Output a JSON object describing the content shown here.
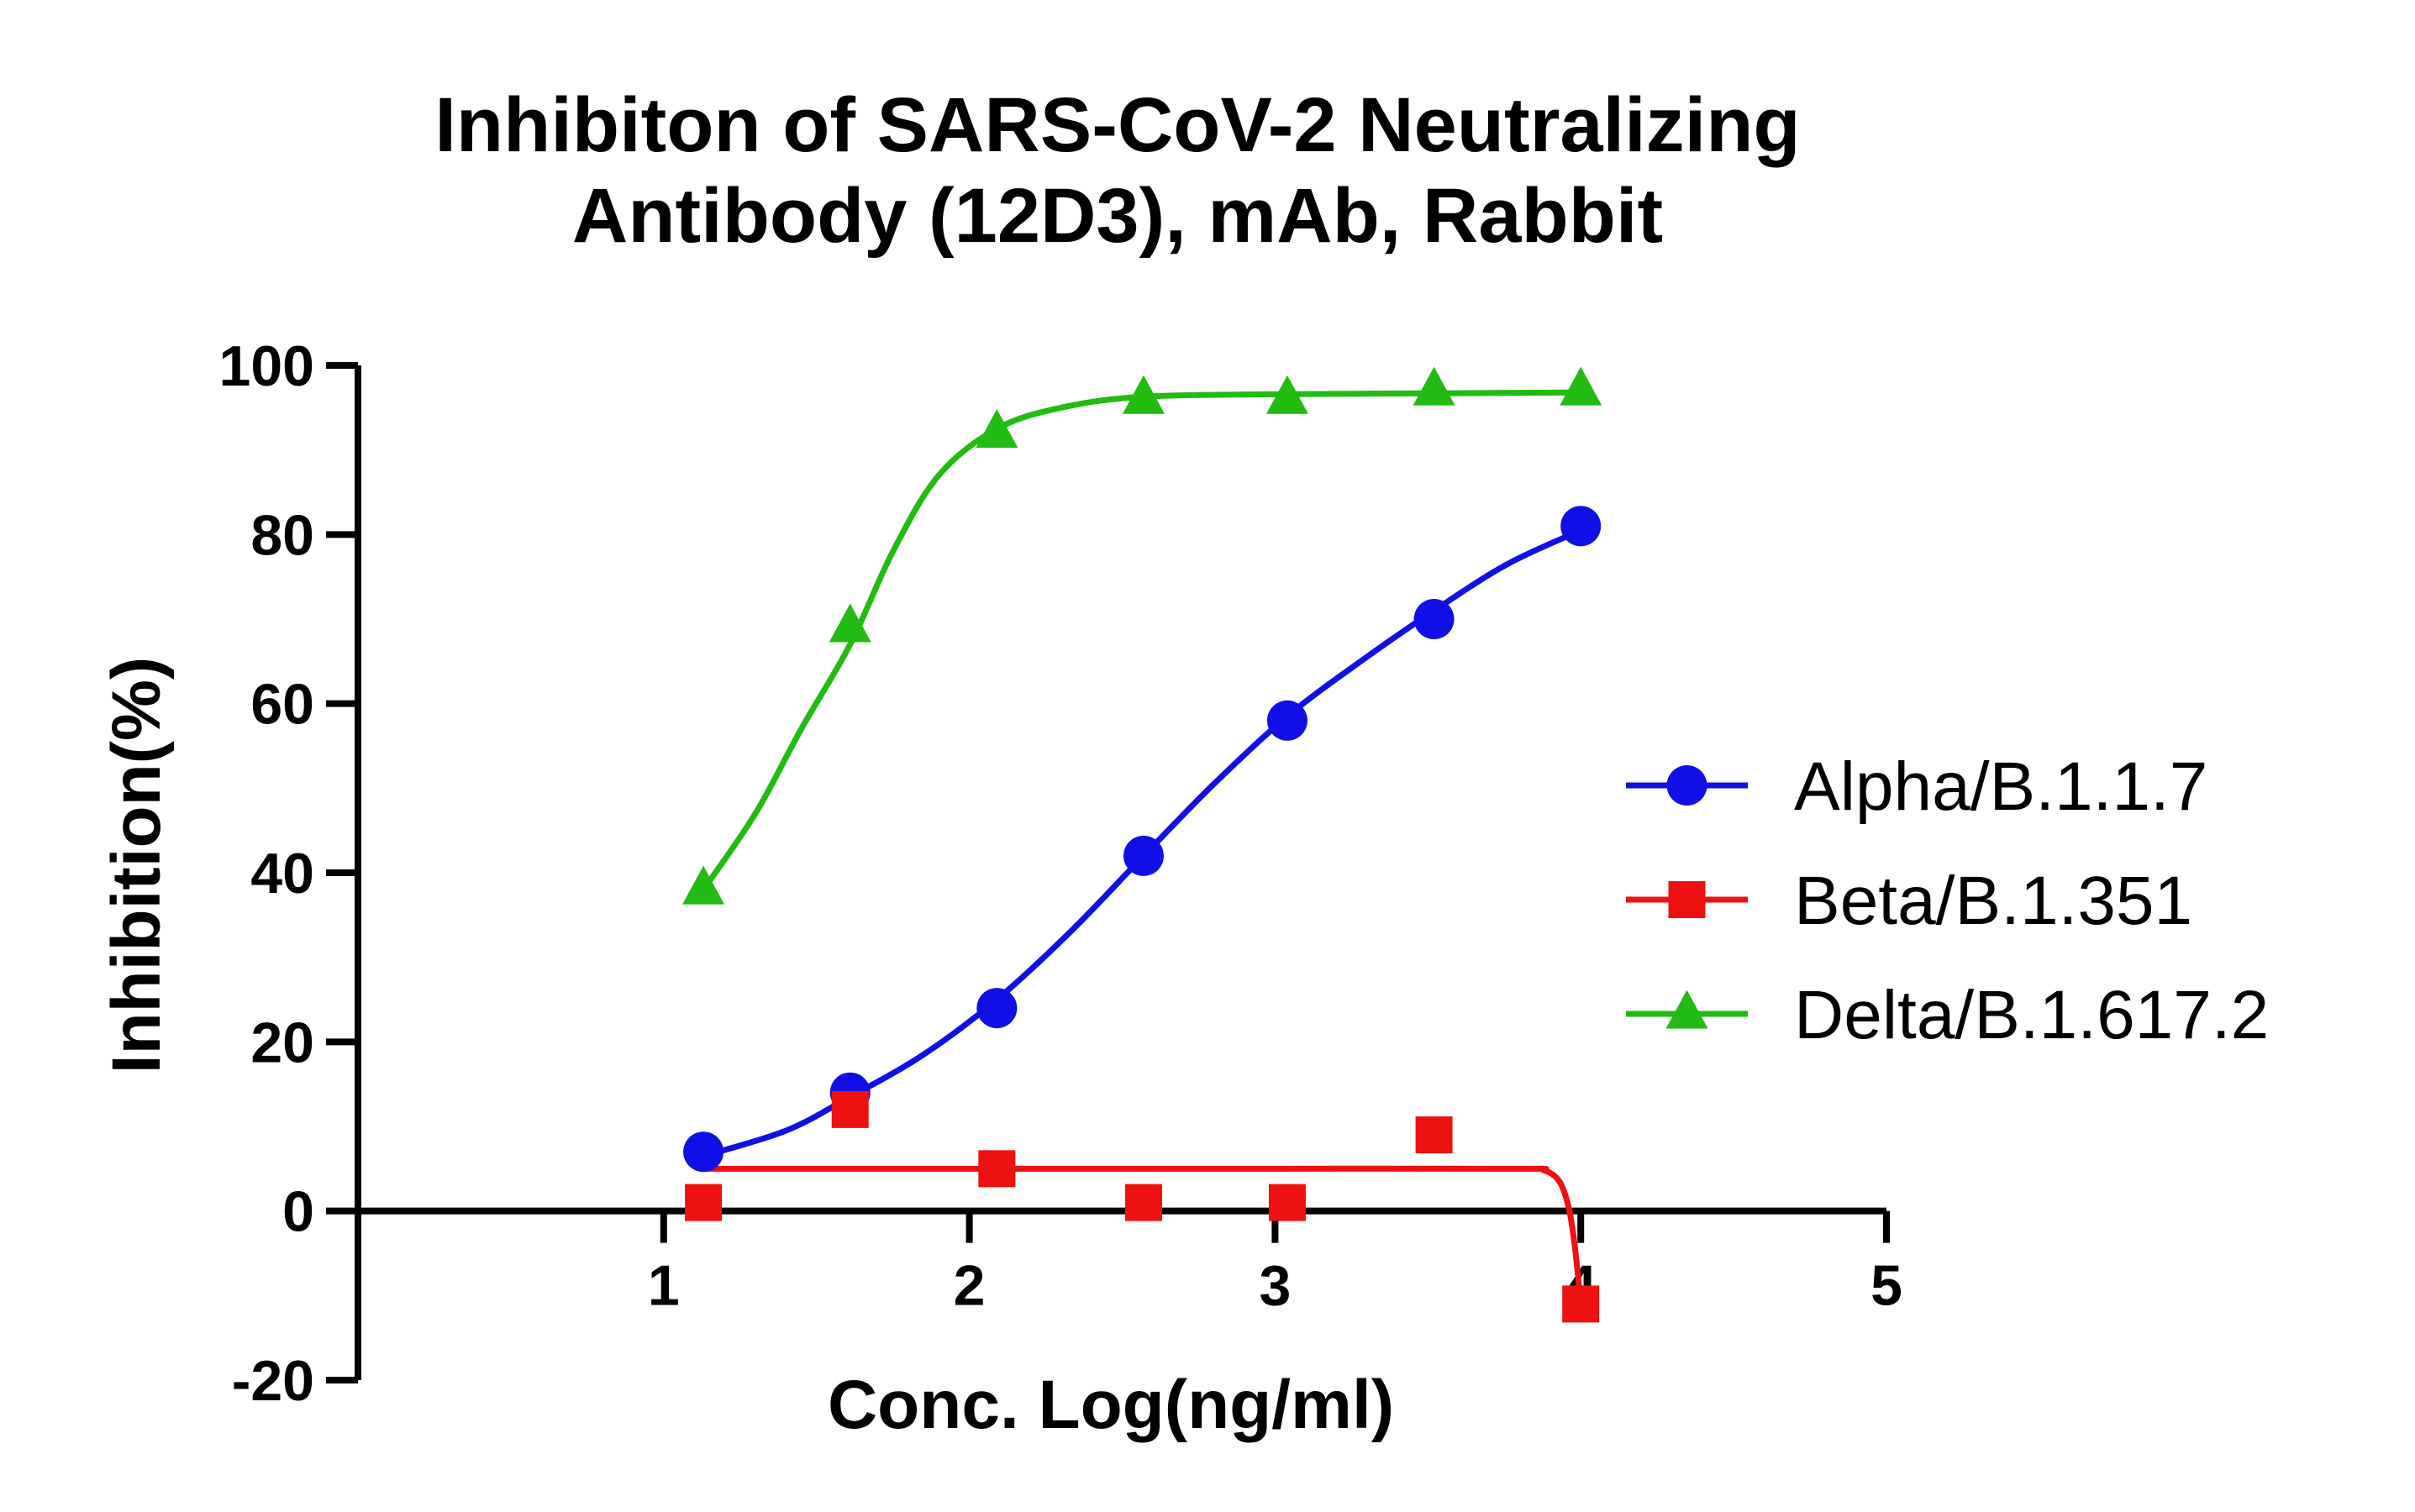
{
  "chart_data": {
    "type": "scatter",
    "title_lines": [
      "Inhibiton of SARS-CoV-2 Neutralizing",
      "Antibody (12D3), mAb, Rabbit"
    ],
    "xlabel": "Conc. Log(ng/ml)",
    "ylabel": "Inhibition(%)",
    "xlim": [
      0,
      5
    ],
    "ylim": [
      -20,
      100
    ],
    "x_ticks": [
      1,
      2,
      3,
      4,
      5
    ],
    "y_ticks": [
      -20,
      0,
      20,
      40,
      60,
      80,
      100
    ],
    "x_tick_labels": [
      "1",
      "2",
      "3",
      "4",
      "5"
    ],
    "y_tick_labels": [
      "-20",
      "0",
      "20",
      "40",
      "60",
      "80",
      "100"
    ],
    "grid": false,
    "legend_position": "right",
    "series": [
      {
        "name": "Alpha/B.1.1.7",
        "marker": "circle",
        "color": "#1010e6",
        "points": [
          [
            1.13,
            7
          ],
          [
            1.61,
            14
          ],
          [
            2.09,
            24
          ],
          [
            2.57,
            42
          ],
          [
            3.04,
            58
          ],
          [
            3.52,
            70
          ],
          [
            4.0,
            81
          ]
        ],
        "curve": [
          [
            1.13,
            6.5
          ],
          [
            1.4,
            9.5
          ],
          [
            1.61,
            13.5
          ],
          [
            1.85,
            18.5
          ],
          [
            2.09,
            25
          ],
          [
            2.33,
            33
          ],
          [
            2.57,
            42
          ],
          [
            2.8,
            50.5
          ],
          [
            3.04,
            58.5
          ],
          [
            3.28,
            65
          ],
          [
            3.52,
            71
          ],
          [
            3.76,
            76.5
          ],
          [
            4.0,
            80.5
          ]
        ]
      },
      {
        "name": "Beta/B.1.351",
        "marker": "square",
        "color": "#ee1111",
        "points": [
          [
            1.13,
            1
          ],
          [
            1.61,
            12
          ],
          [
            2.09,
            5
          ],
          [
            2.57,
            1
          ],
          [
            3.04,
            1
          ],
          [
            3.52,
            9
          ],
          [
            4.0,
            -11
          ]
        ],
        "curve": [
          [
            1.13,
            5
          ],
          [
            2.0,
            5
          ],
          [
            3.0,
            5
          ],
          [
            3.8,
            5
          ],
          [
            3.88,
            4.8
          ],
          [
            3.93,
            3.5
          ],
          [
            3.96,
            0.5
          ],
          [
            3.98,
            -4
          ],
          [
            4.0,
            -11
          ]
        ]
      },
      {
        "name": "Delta/B.1.617.2",
        "marker": "triangle",
        "color": "#22bb11",
        "points": [
          [
            1.13,
            38
          ],
          [
            1.61,
            69
          ],
          [
            2.09,
            92
          ],
          [
            2.57,
            96
          ],
          [
            3.04,
            96
          ],
          [
            3.52,
            97
          ],
          [
            4.0,
            97
          ]
        ],
        "curve": [
          [
            1.13,
            38
          ],
          [
            1.3,
            47
          ],
          [
            1.45,
            57
          ],
          [
            1.61,
            67
          ],
          [
            1.75,
            78
          ],
          [
            1.9,
            87
          ],
          [
            2.09,
            92.5
          ],
          [
            2.3,
            95
          ],
          [
            2.57,
            96.3
          ],
          [
            3.04,
            96.6
          ],
          [
            3.52,
            96.7
          ],
          [
            4.0,
            96.8
          ]
        ]
      }
    ]
  }
}
